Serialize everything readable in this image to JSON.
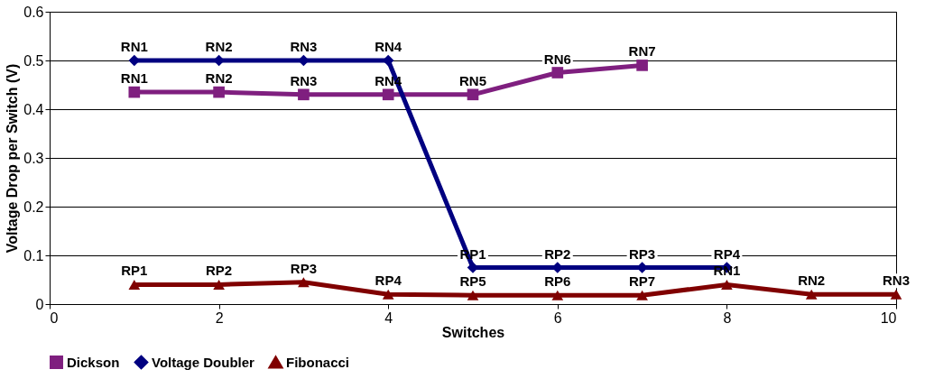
{
  "chart_data": {
    "type": "line",
    "xlabel": "Switches",
    "ylabel": "Voltage Drop per Switch (V)",
    "xlim": [
      0,
      10
    ],
    "xticks": [
      0,
      2,
      4,
      6,
      8,
      10
    ],
    "ylim": [
      0,
      0.6
    ],
    "yticks": [
      0,
      0.1,
      0.2,
      0.3,
      0.4,
      0.5,
      0.6
    ],
    "grid": "y",
    "legend": "bottom",
    "line_style": "solid",
    "series": [
      {
        "name": "Dickson",
        "color": "#7f1f7f",
        "marker": "square",
        "x": [
          1,
          2,
          3,
          4,
          5,
          6,
          7
        ],
        "values": [
          0.435,
          0.435,
          0.43,
          0.43,
          0.43,
          0.475,
          0.49
        ]
      },
      {
        "name": "Voltage Doubler",
        "color": "#000080",
        "marker": "diamond",
        "x": [
          1,
          2,
          3,
          4,
          5,
          6,
          7,
          8
        ],
        "values": [
          0.5,
          0.5,
          0.5,
          0.5,
          0.075,
          0.075,
          0.075,
          0.075
        ]
      },
      {
        "name": "Fibonacci",
        "color": "#800000",
        "marker": "triangle",
        "x": [
          1,
          2,
          3,
          4,
          5,
          6,
          7,
          8,
          9,
          10
        ],
        "values": [
          0.04,
          0.04,
          0.045,
          0.02,
          0.018,
          0.018,
          0.018,
          0.04,
          0.02,
          0.02
        ]
      }
    ],
    "annotations": [
      {
        "text": "RN1",
        "x": 1,
        "y": 0.435
      },
      {
        "text": "RN2",
        "x": 2,
        "y": 0.435
      },
      {
        "text": "RN3",
        "x": 3,
        "y": 0.43
      },
      {
        "text": "RN4",
        "x": 4,
        "y": 0.43
      },
      {
        "text": "RN5",
        "x": 5,
        "y": 0.43
      },
      {
        "text": "RN6",
        "x": 6,
        "y": 0.475
      },
      {
        "text": "RN7",
        "x": 7,
        "y": 0.49
      },
      {
        "text": "RN1",
        "x": 1,
        "y": 0.5
      },
      {
        "text": "RN2",
        "x": 2,
        "y": 0.5
      },
      {
        "text": "RN3",
        "x": 3,
        "y": 0.5
      },
      {
        "text": "RN4",
        "x": 4,
        "y": 0.5
      },
      {
        "text": "RP1",
        "x": 5,
        "y": 0.075
      },
      {
        "text": "RP2",
        "x": 6,
        "y": 0.075
      },
      {
        "text": "RP3",
        "x": 7,
        "y": 0.075
      },
      {
        "text": "RP4",
        "x": 8,
        "y": 0.075
      },
      {
        "text": "RP1",
        "x": 1,
        "y": 0.04
      },
      {
        "text": "RP2",
        "x": 2,
        "y": 0.04
      },
      {
        "text": "RP3",
        "x": 3,
        "y": 0.045
      },
      {
        "text": "RP4",
        "x": 4,
        "y": 0.02
      },
      {
        "text": "RP5",
        "x": 5,
        "y": 0.018
      },
      {
        "text": "RP6",
        "x": 6,
        "y": 0.018
      },
      {
        "text": "RP7",
        "x": 7,
        "y": 0.018
      },
      {
        "text": "RN1",
        "x": 8,
        "y": 0.04
      },
      {
        "text": "RN2",
        "x": 9,
        "y": 0.02
      },
      {
        "text": "RN3",
        "x": 10,
        "y": 0.02
      }
    ]
  }
}
